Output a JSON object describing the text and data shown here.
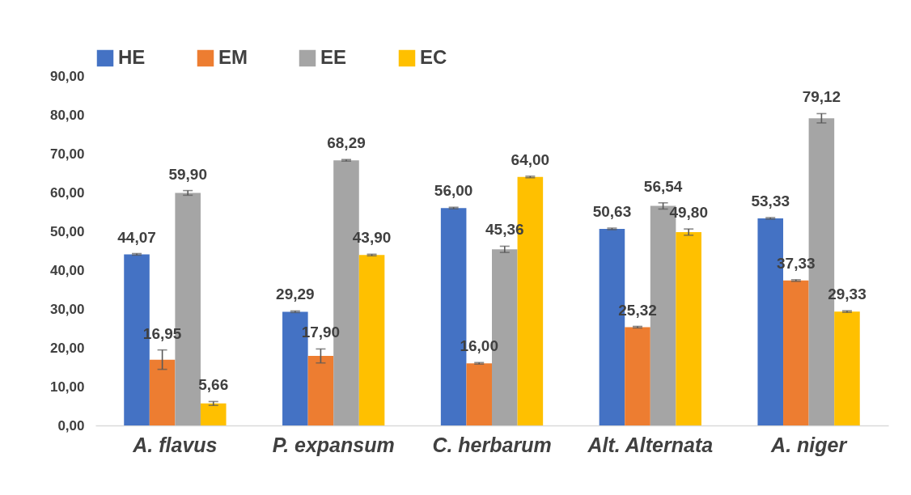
{
  "chart_data": {
    "type": "bar",
    "categories": [
      "A. flavus",
      "P. expansum",
      "C. herbarum",
      "Alt. Alternata",
      "A. niger"
    ],
    "series": [
      {
        "name": "HE",
        "color": "#4472c4",
        "values": [
          44.07,
          29.29,
          56.0,
          50.63,
          53.33
        ],
        "errors": [
          0.2,
          0.2,
          0.2,
          0.2,
          0.2
        ],
        "value_labels": [
          "44,07",
          "29,29",
          "56,00",
          "50,63",
          "53,33"
        ]
      },
      {
        "name": "EM",
        "color": "#ed7d31",
        "values": [
          16.95,
          17.9,
          16.0,
          25.32,
          37.33
        ],
        "errors": [
          2.5,
          1.8,
          0.2,
          0.2,
          0.2
        ],
        "value_labels": [
          "16,95",
          "17,90",
          "16,00",
          "25,32",
          "37,33"
        ]
      },
      {
        "name": "EE",
        "color": "#a5a5a5",
        "values": [
          59.9,
          68.29,
          45.36,
          56.54,
          79.12
        ],
        "errors": [
          0.6,
          0.2,
          0.8,
          0.8,
          1.2
        ],
        "value_labels": [
          "59,90",
          "68,29",
          "45,36",
          "56,54",
          "79,12"
        ]
      },
      {
        "name": "EC",
        "color": "#ffc000",
        "values": [
          5.66,
          43.9,
          64.0,
          49.8,
          29.33
        ],
        "errors": [
          0.5,
          0.2,
          0.2,
          0.8,
          0.2
        ],
        "value_labels": [
          "5,66",
          "43,90",
          "64,00",
          "49,80",
          "29,33"
        ]
      }
    ],
    "ylim": [
      0,
      90
    ],
    "yticks": [
      {
        "value": 0,
        "label": "0,00"
      },
      {
        "value": 10,
        "label": "10,00"
      },
      {
        "value": 20,
        "label": "20,00"
      },
      {
        "value": 30,
        "label": "30,00"
      },
      {
        "value": 40,
        "label": "40,00"
      },
      {
        "value": 50,
        "label": "50,00"
      },
      {
        "value": 60,
        "label": "60,00"
      },
      {
        "value": 70,
        "label": "70,00"
      },
      {
        "value": 80,
        "label": "80,00"
      },
      {
        "value": 90,
        "label": "90,00"
      }
    ],
    "grid": false,
    "legend": "top"
  }
}
